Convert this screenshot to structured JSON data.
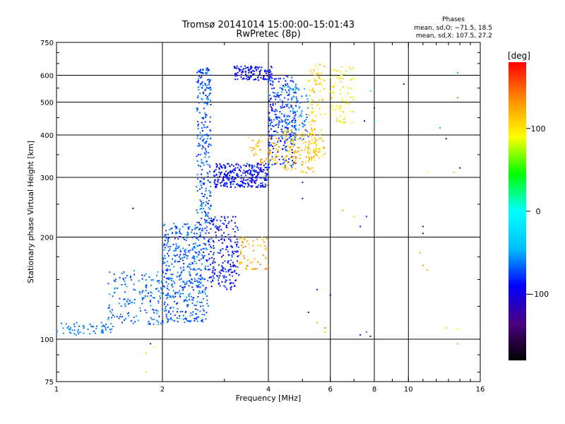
{
  "chart_data": {
    "type": "scatter",
    "title": "Tromsø 20141014 15:00:00–15:01:43",
    "subtitle": "RwPretec (8p)",
    "xlabel": "Frequency [MHz]",
    "ylabel": "Stationary phase Virtual Height [km]",
    "x_scale": "log",
    "y_scale": "log",
    "xlim": [
      1,
      16
    ],
    "ylim": [
      75,
      750
    ],
    "xticks": [
      1,
      2,
      4,
      6,
      8,
      10,
      16
    ],
    "xticklabels": [
      "1",
      "2",
      "4",
      "6",
      "8",
      "10",
      "16"
    ],
    "xgrid": [
      2,
      4,
      6,
      8,
      10
    ],
    "xminor": [
      3,
      5,
      7,
      9,
      11,
      12,
      13,
      14,
      15
    ],
    "yticks": [
      75,
      100,
      200,
      300,
      400,
      500,
      600,
      750
    ],
    "yticklabels": [
      "75",
      "100",
      "200",
      "300",
      "400",
      "500",
      "600",
      "750"
    ],
    "ygrid": [
      100,
      200,
      300,
      400,
      500,
      600
    ],
    "grid": true,
    "phases_annotation": {
      "title": "Phases",
      "line1": "mean, sd,O: −71.5, 18.5",
      "line2": "mean, sd,X: 107.5, 27.2"
    },
    "colorbar": {
      "label": "[deg]",
      "range": [
        -180,
        180
      ],
      "ticks": [
        100,
        0,
        -100
      ],
      "ticklabels": [
        "100",
        "0",
        "−100"
      ],
      "colors": [
        "#000000",
        "#4b0082",
        "#0000ff",
        "#00bfff",
        "#00ffff",
        "#00ff00",
        "#ffff00",
        "#ff8c00",
        "#ff0000"
      ]
    },
    "series": [
      {
        "trace": "o-mode-low-f",
        "x_range": [
          1.0,
          1.45
        ],
        "y_range": [
          103,
          112
        ],
        "n": 60,
        "phase": -62,
        "phase_sd": 8,
        "clusters": [
          {
            "x": [
              1.4,
              2.0
            ],
            "y": [
              110,
              160
            ],
            "n": 160,
            "phase": -65
          },
          {
            "x": [
              2.0,
              2.7
            ],
            "y": [
              112,
              220
            ],
            "n": 480,
            "phase": -68
          },
          {
            "x": [
              2.5,
              2.75
            ],
            "y": [
              220,
              640
            ],
            "n": 260,
            "phase": -70
          },
          {
            "x": [
              2.7,
              3.3
            ],
            "y": [
              140,
              230
            ],
            "n": 220,
            "phase": -88
          },
          {
            "x": [
              2.8,
              4.0
            ],
            "y": [
              280,
              330
            ],
            "n": 300,
            "phase": -90
          },
          {
            "x": [
              3.2,
              4.1
            ],
            "y": [
              580,
              640
            ],
            "n": 120,
            "phase": -92
          },
          {
            "x": [
              4.0,
              4.8
            ],
            "y": [
              320,
              600
            ],
            "n": 240,
            "phase": -82
          },
          {
            "x": [
              4.3,
              5.2
            ],
            "y": [
              380,
              560
            ],
            "n": 110,
            "phase": -60
          }
        ]
      },
      {
        "trace": "x-mode",
        "clusters": [
          {
            "x": [
              3.3,
              4.0
            ],
            "y": [
              160,
              200
            ],
            "n": 60,
            "phase": 125
          },
          {
            "x": [
              3.5,
              4.3
            ],
            "y": [
              330,
              400
            ],
            "n": 60,
            "phase": 120
          },
          {
            "x": [
              4.4,
              5.5
            ],
            "y": [
              310,
              420
            ],
            "n": 120,
            "phase": 118
          },
          {
            "x": [
              5.2,
              5.8
            ],
            "y": [
              330,
              650
            ],
            "n": 110,
            "phase": 110
          },
          {
            "x": [
              6.0,
              7.0
            ],
            "y": [
              430,
              640
            ],
            "n": 70,
            "phase": 95
          }
        ]
      },
      {
        "trace": "scattered",
        "points": [
          [
            1.65,
            243,
            -95
          ],
          [
            1.85,
            97,
            -120
          ],
          [
            1.9,
            95,
            90
          ],
          [
            1.8,
            91,
            110
          ],
          [
            1.8,
            80,
            80
          ],
          [
            5.0,
            260,
            -105
          ],
          [
            5.5,
            140,
            -100
          ],
          [
            5.2,
            120,
            -110
          ],
          [
            6.5,
            240,
            60
          ],
          [
            7.0,
            230,
            100
          ],
          [
            7.3,
            215,
            -100
          ],
          [
            7.6,
            230,
            -80
          ],
          [
            7.8,
            540,
            30
          ],
          [
            7.5,
            440,
            -110
          ],
          [
            8.0,
            480,
            -120
          ],
          [
            8.0,
            440,
            40
          ],
          [
            7.6,
            105,
            -60
          ],
          [
            7.3,
            103,
            -100
          ],
          [
            7.8,
            102,
            -150
          ],
          [
            9.7,
            565,
            -130
          ],
          [
            11.0,
            215,
            -120
          ],
          [
            11.0,
            205,
            -110
          ],
          [
            10.8,
            180,
            120
          ],
          [
            11.3,
            310,
            90
          ],
          [
            12.3,
            420,
            -50
          ],
          [
            12.8,
            390,
            -150
          ],
          [
            13.8,
            610,
            -50
          ],
          [
            13.8,
            515,
            140
          ],
          [
            14.0,
            320,
            -140
          ],
          [
            13.5,
            310,
            110
          ],
          [
            12.8,
            108,
            110
          ],
          [
            13.8,
            107,
            90
          ],
          [
            13.8,
            97,
            130
          ],
          [
            11.0,
            165,
            130
          ],
          [
            11.3,
            160,
            120
          ],
          [
            5.8,
            105,
            100
          ],
          [
            5.5,
            112,
            120
          ],
          [
            5.8,
            108,
            140
          ],
          [
            6.0,
            135,
            -90
          ],
          [
            5.0,
            290,
            -80
          ]
        ]
      }
    ]
  }
}
